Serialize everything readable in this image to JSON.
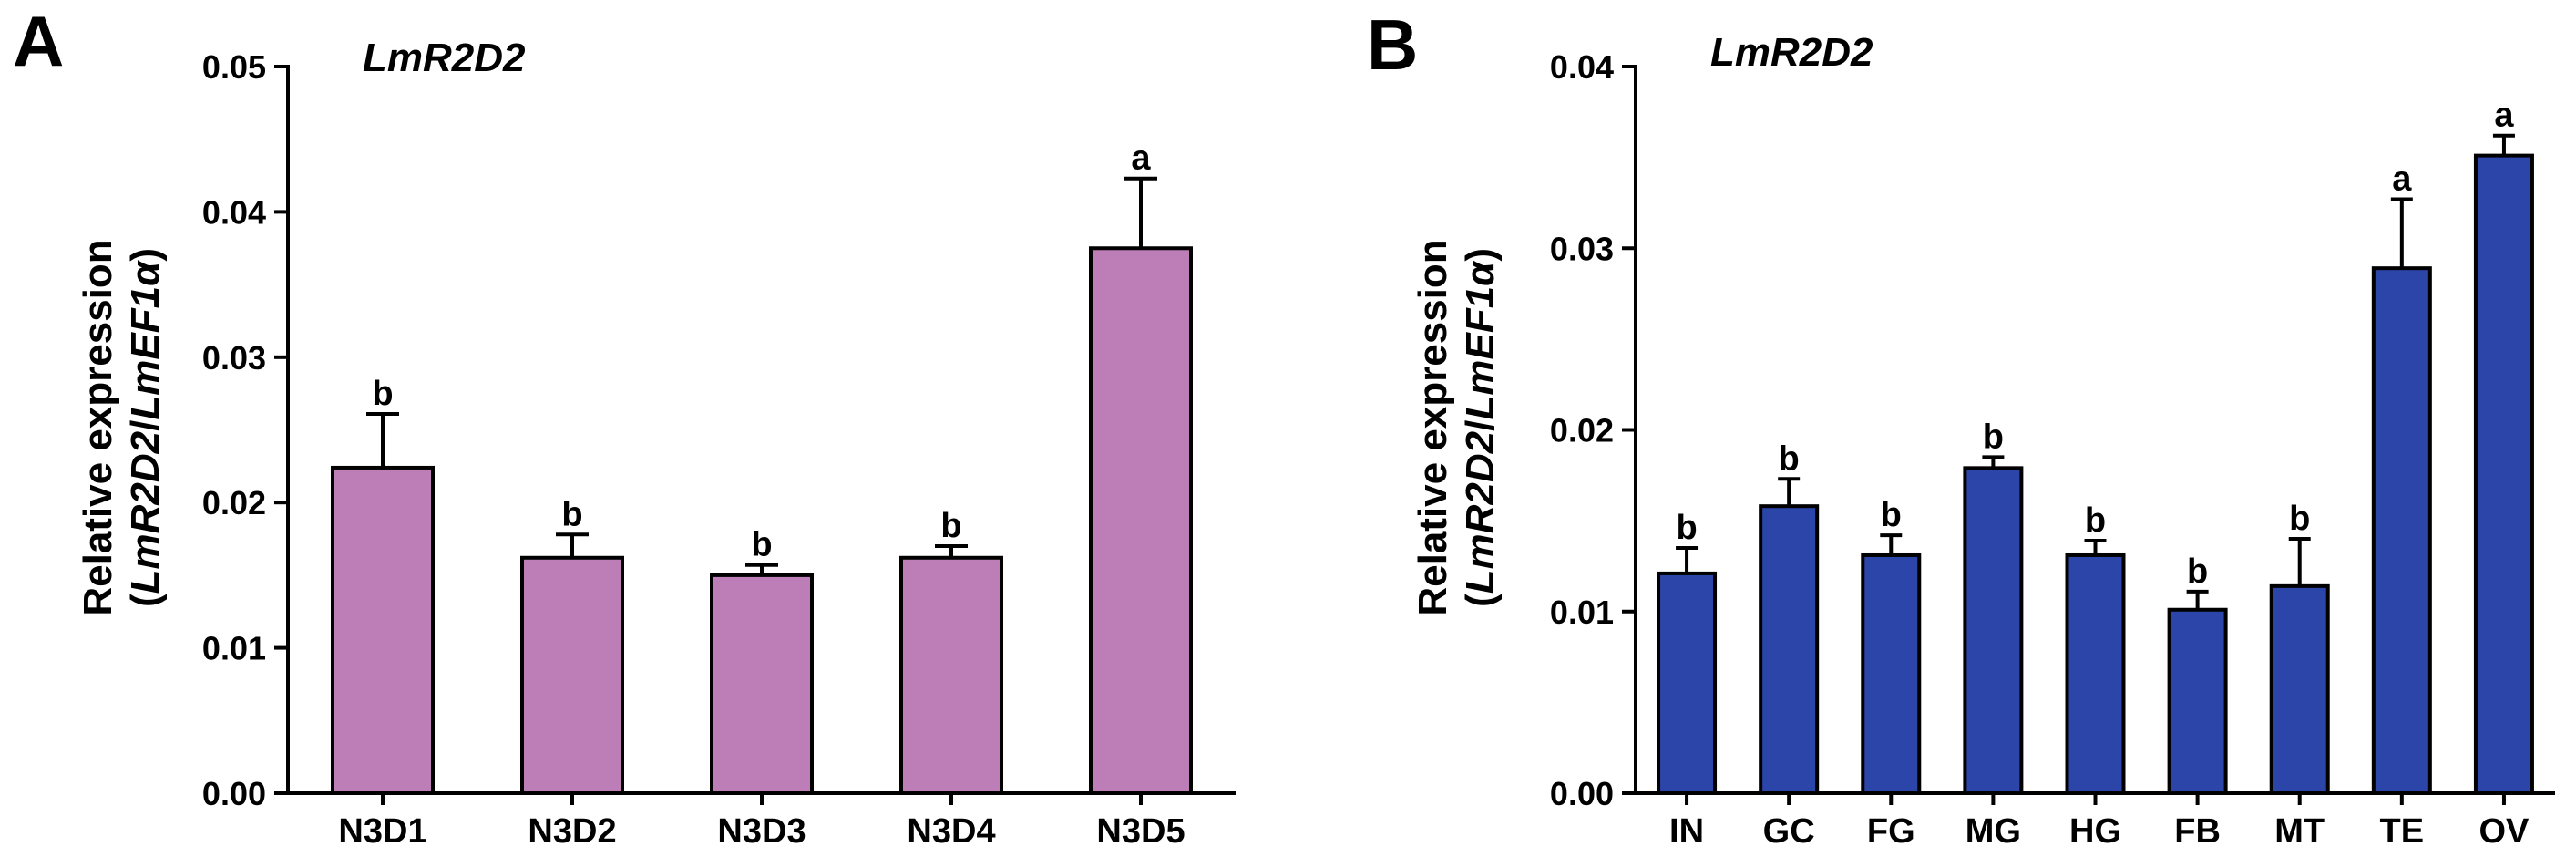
{
  "chart_data": [
    {
      "type": "bar",
      "panel_label": "A",
      "title": "LmR2D2",
      "ylabel_line1": "Relative expression",
      "ylabel_line2": {
        "open": "(",
        "gene": "LmR2D2",
        "slash": "/",
        "ref": "LmEF1α",
        "close": ")"
      },
      "categories": [
        "N3D1",
        "N3D2",
        "N3D3",
        "N3D4",
        "N3D5"
      ],
      "values": [
        0.0224,
        0.0162,
        0.015,
        0.0162,
        0.0375
      ],
      "errors": [
        0.0037,
        0.0016,
        0.0007,
        0.0008,
        0.0048
      ],
      "significance": [
        "b",
        "b",
        "b",
        "b",
        "a"
      ],
      "ylim": [
        0,
        0.05
      ],
      "yticks": [
        0,
        0.01,
        0.02,
        0.03,
        0.04,
        0.05
      ],
      "ytick_labels": [
        "0.00",
        "0.01",
        "0.02",
        "0.03",
        "0.04",
        "0.05"
      ],
      "bar_color": "#bd7db6"
    },
    {
      "type": "bar",
      "panel_label": "B",
      "title": "LmR2D2",
      "ylabel_line1": "Relative expression",
      "ylabel_line2": {
        "open": "(",
        "gene": "LmR2D2",
        "slash": "/",
        "ref": "LmEF1α",
        "close": ")"
      },
      "categories": [
        "IN",
        "GC",
        "FG",
        "MG",
        "HG",
        "FB",
        "MT",
        "TE",
        "OV"
      ],
      "values": [
        0.0121,
        0.0158,
        0.0131,
        0.0179,
        0.0131,
        0.0101,
        0.0114,
        0.0289,
        0.0351
      ],
      "errors": [
        0.0014,
        0.0015,
        0.0011,
        0.0006,
        0.0008,
        0.001,
        0.0026,
        0.0038,
        0.0011
      ],
      "significance": [
        "b",
        "b",
        "b",
        "b",
        "b",
        "b",
        "b",
        "a",
        "a"
      ],
      "ylim": [
        0,
        0.04
      ],
      "yticks": [
        0,
        0.01,
        0.02,
        0.03,
        0.04
      ],
      "ytick_labels": [
        "0.00",
        "0.01",
        "0.02",
        "0.03",
        "0.04"
      ],
      "bar_color": "#2b45a8"
    }
  ]
}
